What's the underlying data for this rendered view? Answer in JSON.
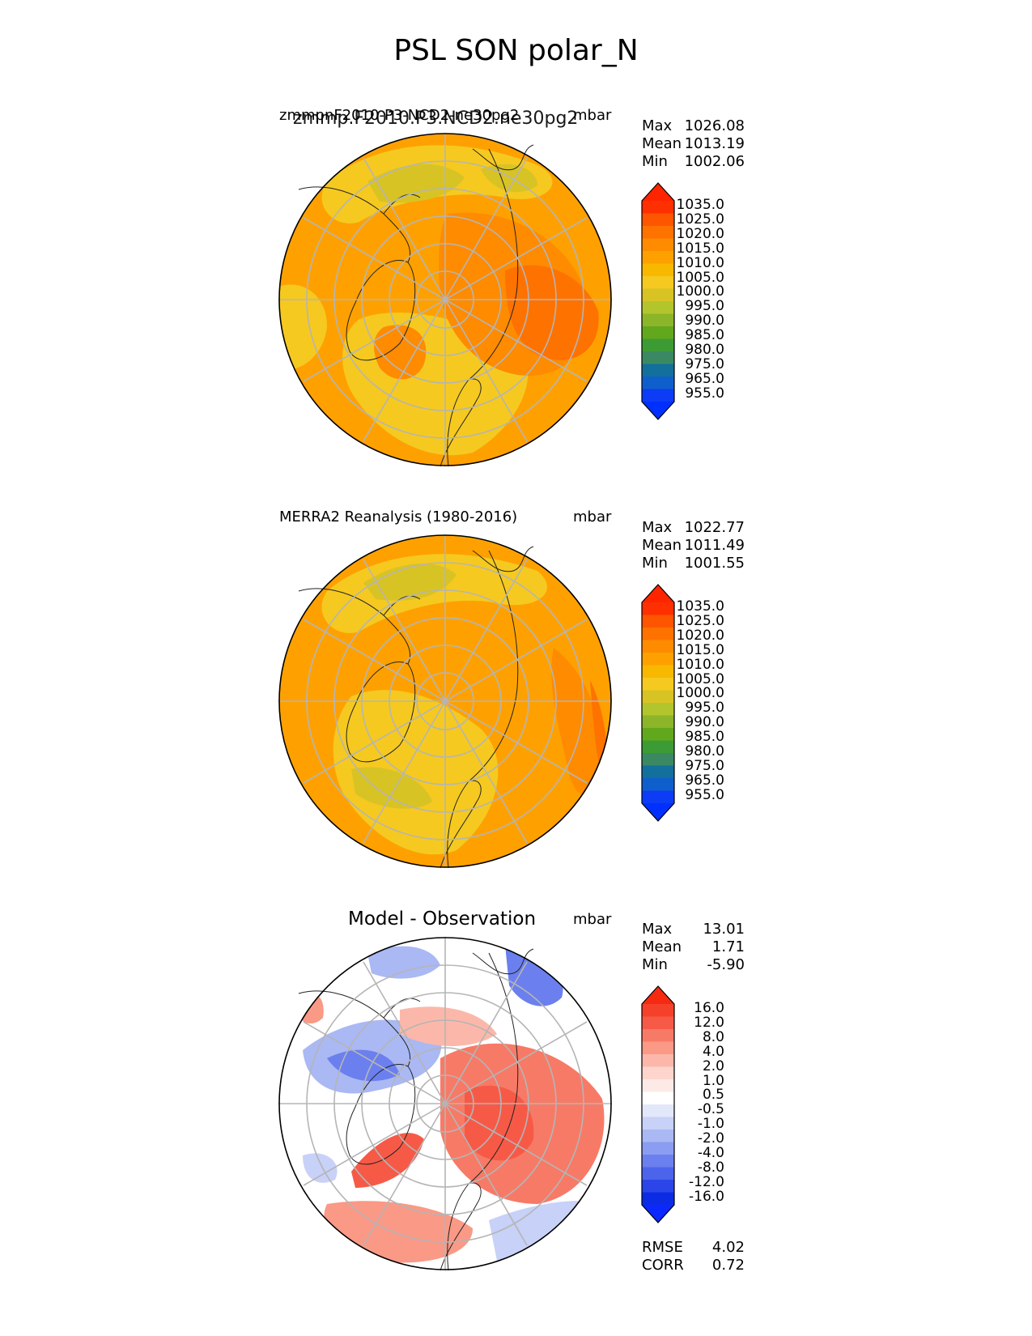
{
  "title": "PSL SON polar_N",
  "panels": [
    {
      "id": "model",
      "left_title": "zmmpnF2010-P3-NCD2-ne30pg2",
      "overlay_title": "zmmp.F2010.P3.NCD2.ne30pg2",
      "units": "mbar",
      "stats": [
        {
          "label": "Max",
          "value": "1026.08"
        },
        {
          "label": "Mean",
          "value": "1013.19"
        },
        {
          "label": "Min",
          "value": "1002.06"
        }
      ],
      "colorbar": {
        "labels": [
          "1035.0",
          "1025.0",
          "1020.0",
          "1015.0",
          "1010.0",
          "1005.0",
          "1000.0",
          "995.0",
          "990.0",
          "985.0",
          "980.0",
          "975.0",
          "965.0",
          "955.0"
        ],
        "colors": [
          "#fe2f00",
          "#fe5500",
          "#fe7200",
          "#fe8b00",
          "#fea100",
          "#f8b800",
          "#f5c920",
          "#d8c325",
          "#b3c52c",
          "#8cb52a",
          "#62a81c",
          "#3d9b35",
          "#3a8963",
          "#136f9c",
          "#0e5fcc",
          "#0c3cf5"
        ],
        "top_arrow_color": "#ff2400",
        "bottom_arrow_color": "#0030ff"
      },
      "map": {
        "regions": [
          {
            "color": "#fea100"
          },
          {
            "color": "#f5c920"
          },
          {
            "color": "#f5c920"
          },
          {
            "color": "#d8c325"
          },
          {
            "color": "#fe8b00"
          },
          {
            "color": "#fe7200"
          },
          {
            "color": "#fe8b00"
          },
          {
            "color": "#f5c920"
          }
        ]
      }
    },
    {
      "id": "obs",
      "left_title": "MERRA2 Reanalysis (1980-2016)",
      "units": "mbar",
      "stats": [
        {
          "label": "Max",
          "value": "1022.77"
        },
        {
          "label": "Mean",
          "value": "1011.49"
        },
        {
          "label": "Min",
          "value": "1001.55"
        }
      ],
      "colorbar": {
        "labels": [
          "1035.0",
          "1025.0",
          "1020.0",
          "1015.0",
          "1010.0",
          "1005.0",
          "1000.0",
          "995.0",
          "990.0",
          "985.0",
          "980.0",
          "975.0",
          "965.0",
          "955.0"
        ],
        "colors": [
          "#fe2f00",
          "#fe5500",
          "#fe7200",
          "#fe8b00",
          "#fea100",
          "#f8b800",
          "#f5c920",
          "#d8c325",
          "#b3c52c",
          "#8cb52a",
          "#62a81c",
          "#3d9b35",
          "#3a8963",
          "#136f9c",
          "#0e5fcc",
          "#0c3cf5"
        ],
        "top_arrow_color": "#ff2400",
        "bottom_arrow_color": "#0030ff"
      },
      "map": {
        "regions": [
          {
            "color": "#fea100"
          },
          {
            "color": "#f5c920"
          },
          {
            "color": "#f5c920"
          },
          {
            "color": "#d8c325"
          },
          {
            "color": "#fe8b00"
          },
          {
            "color": "#fea100"
          },
          {
            "color": "#fe7200"
          },
          {
            "color": "#d8c325"
          }
        ]
      }
    },
    {
      "id": "diff",
      "center_title": "Model - Observation",
      "units": "mbar",
      "stats": [
        {
          "label": "Max",
          "value": "13.01"
        },
        {
          "label": "Mean",
          "value": "1.71"
        },
        {
          "label": "Min",
          "value": "-5.90"
        }
      ],
      "colorbar": {
        "labels": [
          "16.0",
          "12.0",
          "8.0",
          "4.0",
          "2.0",
          "1.0",
          "0.5",
          "-0.5",
          "-1.0",
          "-2.0",
          "-4.0",
          "-8.0",
          "-12.0",
          "-16.0"
        ],
        "colors": [
          "#f5402a",
          "#f65a47",
          "#f77a67",
          "#f99986",
          "#fbb8aa",
          "#fdd5cd",
          "#fdeae6",
          "#ffffff",
          "#e3e7fa",
          "#c8d1f7",
          "#aab8f4",
          "#8b9df1",
          "#6b80ee",
          "#4c63eb",
          "#2b45e8",
          "#0c2be5"
        ],
        "top_arrow_color": "#f52a10",
        "bottom_arrow_color": "#0a28ff"
      },
      "extra_stats": [
        {
          "label": "RMSE",
          "value": "4.02"
        },
        {
          "label": "CORR",
          "value": "0.72"
        }
      ],
      "map": {
        "regions": [
          {
            "color": "#ffffff"
          },
          {
            "color": "#f77a67"
          },
          {
            "color": "#f65a47"
          },
          {
            "color": "#aab8f4"
          },
          {
            "color": "#6b80ee"
          },
          {
            "color": "#f99986"
          },
          {
            "color": "#fbb8aa"
          },
          {
            "color": "#c8d1f7"
          }
        ]
      }
    }
  ]
}
